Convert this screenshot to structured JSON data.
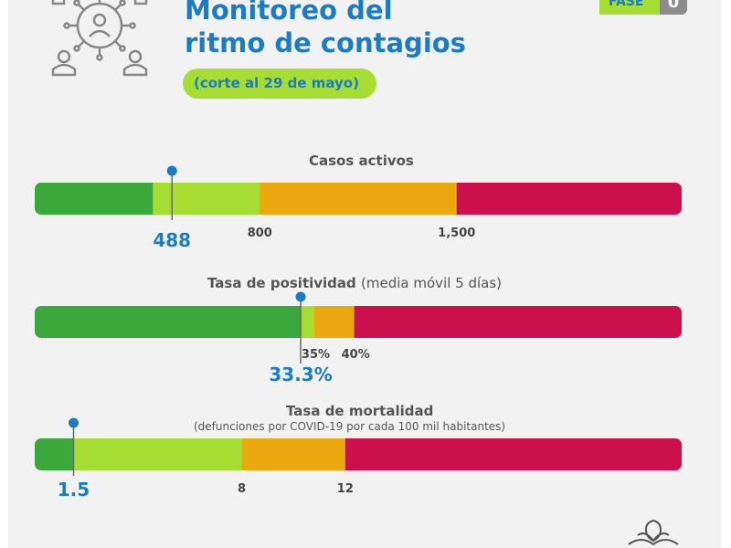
{
  "header": {
    "title_line1": "Monitoreo del",
    "title_line2": "ritmo de contagios",
    "subtitle": "(corte al 29 de mayo)",
    "fase_label": "FASE",
    "fase_value": "0"
  },
  "icons": {
    "top_left": "virus-people-network-icon",
    "bottom_right": "coat-of-arms-icon"
  },
  "colors": {
    "green": "#3ba83c",
    "lime": "#a6dd33",
    "orange": "#eba80f",
    "red": "#cc0f4d",
    "accent_blue": "#1a7bc6",
    "bg": "#f2f2f3"
  },
  "chart_data": [
    {
      "type": "bar",
      "title": "Casos activos",
      "note": "",
      "scale_max": 2300,
      "segments": [
        {
          "name": "green",
          "end": 420
        },
        {
          "name": "lime",
          "end": 800
        },
        {
          "name": "orange",
          "end": 1500
        },
        {
          "name": "red",
          "end": 2300
        }
      ],
      "ticks": [
        {
          "value": 800,
          "label": "800"
        },
        {
          "value": 1500,
          "label": "1,500"
        }
      ],
      "marker": {
        "value": 488,
        "label": "488"
      }
    },
    {
      "type": "bar",
      "title": "Tasa de positividad",
      "note": "(media móvil 5 días)",
      "scale_max": 81,
      "segments": [
        {
          "name": "green",
          "end": 33.3
        },
        {
          "name": "lime",
          "end": 35
        },
        {
          "name": "orange",
          "end": 40
        },
        {
          "name": "red",
          "end": 81
        }
      ],
      "ticks": [
        {
          "value": 35,
          "label": "35%"
        },
        {
          "value": 40,
          "label": "40%"
        }
      ],
      "marker": {
        "value": 33.3,
        "label": "33.3%"
      }
    },
    {
      "type": "bar",
      "title": "Tasa de mortalidad",
      "note": "(defunciones por COVID-19 por cada 100 mil habitantes)",
      "scale_max": 25,
      "segments": [
        {
          "name": "green",
          "end": 1.5
        },
        {
          "name": "lime",
          "end": 8
        },
        {
          "name": "orange",
          "end": 12
        },
        {
          "name": "red",
          "end": 25
        }
      ],
      "ticks": [
        {
          "value": 8,
          "label": "8"
        },
        {
          "value": 12,
          "label": "12"
        }
      ],
      "marker": {
        "value": 1.5,
        "label": "1.5"
      }
    }
  ]
}
